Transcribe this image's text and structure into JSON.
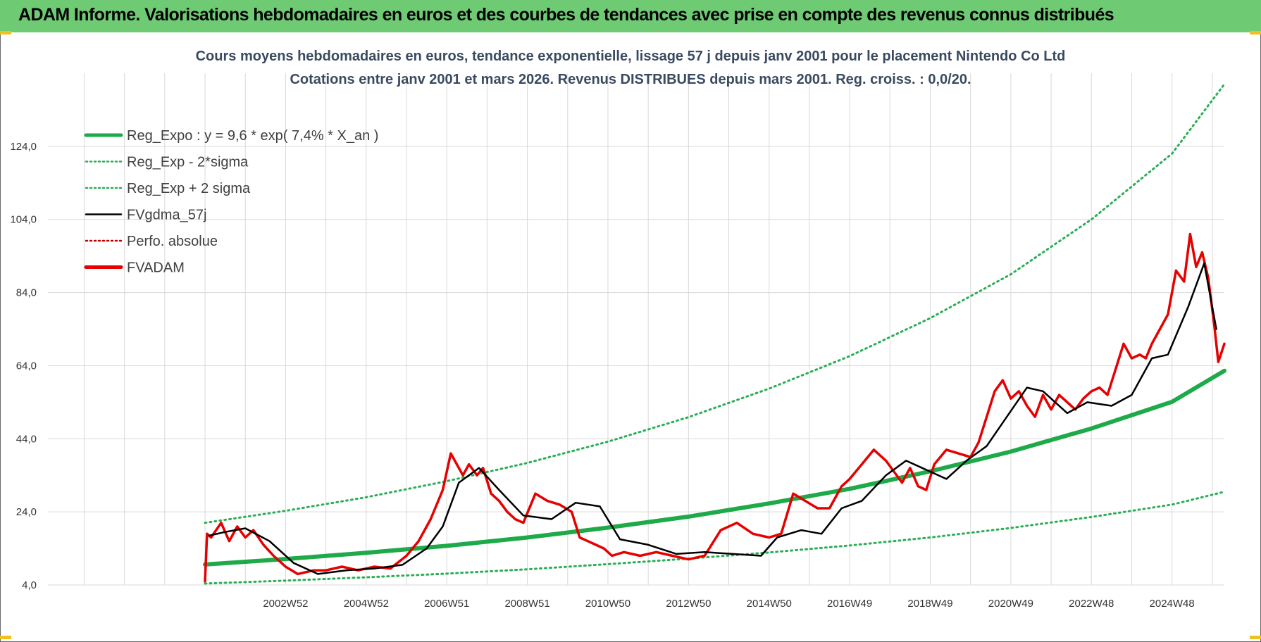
{
  "header": {
    "title": "ADAM Informe. Valorisations hebdomadaires en euros et des courbes de tendances avec prise en compte des revenus connus distribués"
  },
  "colors": {
    "header_bg": "#6ecb73",
    "reg_expo": "#1faa4a",
    "bands": "#2aae55",
    "smooth": "#000000",
    "price": "#e60000",
    "grid": "#d9d9d9",
    "title_text": "#3a4a60"
  },
  "chart_data": {
    "type": "line",
    "title": "Cours moyens hebdomadaires en euros, tendance exponentielle, lissage 57 j depuis janv 2001 pour le placement Nintendo Co Ltd",
    "subtitle": "Cotations entre janv 2001 et mars 2026. Revenus DISTRIBUES depuis mars 2001. Reg. croiss. : 0,0/20.",
    "xlabel": "",
    "ylabel": "",
    "ylim": [
      4,
      144
    ],
    "xlim": [
      1997.1,
      2026.3
    ],
    "y_ticks": [
      "4,0",
      "24,0",
      "44,0",
      "64,0",
      "84,0",
      "104,0",
      "124,0"
    ],
    "x_ticks": [
      "2002W52",
      "2004W52",
      "2006W51",
      "2008W51",
      "2010W50",
      "2012W50",
      "2014W50",
      "2016W49",
      "2018W49",
      "2020W49",
      "2022W48",
      "2024W48"
    ],
    "grid": true,
    "legend_position": "top-left",
    "legend": [
      {
        "label": "Reg_Expo : y = 9,6 * exp( 7,4% *  X_an )",
        "style": "solid-thick",
        "color": "#1faa4a"
      },
      {
        "label": "Reg_Exp - 2*sigma",
        "style": "dotted",
        "color": "#2aae55"
      },
      {
        "label": "Reg_Exp + 2 sigma",
        "style": "dotted",
        "color": "#2aae55"
      },
      {
        "label": "FVgdma_57j",
        "style": "solid",
        "color": "#000000"
      },
      {
        "label": "Perfo. absolue",
        "style": "dotted",
        "color": "#c00000"
      },
      {
        "label": "FVADAM",
        "style": "solid-thick",
        "color": "#e60000"
      }
    ],
    "series": [
      {
        "name": "Reg_Expo : y = 9,6 * exp( 7,4% *  X_an )",
        "x": [
          2001.0,
          2003,
          2005,
          2007,
          2009,
          2011,
          2013,
          2015,
          2017,
          2019,
          2021,
          2023,
          2025,
          2026.3
        ],
        "values": [
          9.6,
          11.1,
          12.8,
          14.7,
          17.0,
          19.7,
          22.7,
          26.3,
          30.3,
          35.1,
          40.5,
          46.8,
          54.1,
          62.6
        ]
      },
      {
        "name": "Reg_Exp - 2*sigma",
        "x": [
          2001.0,
          2003,
          2005,
          2007,
          2009,
          2011,
          2013,
          2015,
          2017,
          2019,
          2021,
          2023,
          2025,
          2026.3
        ],
        "values": [
          4.4,
          5.2,
          6.1,
          7.1,
          8.3,
          9.7,
          11.2,
          12.9,
          14.8,
          17.0,
          19.6,
          22.6,
          26.0,
          29.5
        ]
      },
      {
        "name": "Reg_Exp + 2 sigma",
        "x": [
          2001.0,
          2003,
          2005,
          2007,
          2009,
          2011,
          2013,
          2015,
          2017,
          2019,
          2021,
          2023,
          2025,
          2026.3
        ],
        "values": [
          21.0,
          24.3,
          28.0,
          32.4,
          37.4,
          43.2,
          49.9,
          57.7,
          66.6,
          77.0,
          89.0,
          104.0,
          122.0,
          141.0
        ]
      },
      {
        "name": "FVgdma_57j",
        "x": [
          2001.1,
          2001.5,
          2002.0,
          2002.6,
          2003.2,
          2003.8,
          2004.5,
          2005.2,
          2005.9,
          2006.5,
          2006.9,
          2007.3,
          2007.8,
          2008.3,
          2008.9,
          2009.6,
          2010.2,
          2010.8,
          2011.3,
          2012.0,
          2012.7,
          2013.4,
          2014.1,
          2014.8,
          2015.2,
          2015.8,
          2016.3,
          2016.8,
          2017.3,
          2017.9,
          2018.4,
          2018.8,
          2019.4,
          2019.9,
          2020.4,
          2020.9,
          2021.4,
          2021.8,
          2022.4,
          2022.9,
          2023.5,
          2024.0,
          2024.5,
          2024.9,
          2025.4,
          2025.8,
          2026.1
        ],
        "values": [
          17.5,
          18.5,
          19.5,
          16.0,
          10.0,
          7.0,
          8.0,
          8.5,
          9.5,
          14.0,
          20.0,
          32.0,
          36.0,
          30.0,
          23.0,
          22.0,
          26.5,
          25.5,
          16.5,
          15.0,
          12.5,
          13.0,
          12.5,
          12.0,
          17.0,
          19.0,
          18.0,
          25.0,
          27.0,
          34.0,
          38.0,
          36.0,
          33.0,
          38.0,
          42.0,
          50.0,
          58.0,
          57.0,
          51.0,
          54.0,
          53.0,
          56.0,
          66.0,
          67.0,
          80.0,
          92.0,
          74.0
        ]
      },
      {
        "name": "FVADAM",
        "x": [
          2001.0,
          2001.05,
          2001.15,
          2001.4,
          2001.6,
          2001.8,
          2002.0,
          2002.2,
          2002.45,
          2002.7,
          2003.0,
          2003.3,
          2003.7,
          2004.0,
          2004.4,
          2004.8,
          2005.2,
          2005.6,
          2006.0,
          2006.3,
          2006.6,
          2006.9,
          2007.1,
          2007.4,
          2007.55,
          2007.75,
          2007.9,
          2008.1,
          2008.3,
          2008.5,
          2008.7,
          2008.9,
          2009.2,
          2009.5,
          2009.8,
          2010.1,
          2010.3,
          2010.5,
          2010.7,
          2010.9,
          2011.1,
          2011.4,
          2011.8,
          2012.2,
          2012.6,
          2013.0,
          2013.4,
          2013.8,
          2014.2,
          2014.6,
          2015.0,
          2015.3,
          2015.6,
          2015.9,
          2016.2,
          2016.5,
          2016.65,
          2016.8,
          2017.0,
          2017.3,
          2017.6,
          2017.9,
          2018.1,
          2018.3,
          2018.5,
          2018.7,
          2018.9,
          2019.1,
          2019.4,
          2019.7,
          2020.0,
          2020.2,
          2020.4,
          2020.6,
          2020.8,
          2021.0,
          2021.2,
          2021.4,
          2021.6,
          2021.8,
          2022.0,
          2022.2,
          2022.4,
          2022.6,
          2022.8,
          2023.0,
          2023.2,
          2023.4,
          2023.6,
          2023.8,
          2024.0,
          2024.2,
          2024.35,
          2024.5,
          2024.7,
          2024.9,
          2025.1,
          2025.3,
          2025.45,
          2025.6,
          2025.75,
          2025.9,
          2026.05,
          2026.15,
          2026.3
        ],
        "values": [
          5.0,
          18.0,
          17.0,
          21.0,
          16.0,
          20.0,
          17.0,
          19.0,
          15.0,
          12.0,
          9.0,
          7.0,
          8.0,
          8.0,
          9.0,
          8.0,
          9.0,
          8.5,
          12.0,
          16.0,
          22.0,
          30.0,
          40.0,
          34.0,
          37.0,
          34.0,
          36.0,
          29.0,
          27.0,
          24.0,
          22.0,
          21.0,
          29.0,
          27.0,
          26.0,
          24.0,
          17.0,
          16.0,
          15.0,
          14.0,
          12.0,
          13.0,
          12.0,
          13.0,
          12.0,
          11.0,
          12.0,
          19.0,
          21.0,
          18.0,
          17.0,
          18.0,
          29.0,
          27.0,
          25.0,
          25.0,
          28.0,
          31.0,
          33.0,
          37.0,
          41.0,
          38.0,
          35.0,
          32.0,
          36.0,
          31.0,
          30.0,
          37.0,
          41.0,
          40.0,
          39.0,
          43.0,
          50.0,
          57.0,
          60.0,
          55.0,
          57.0,
          53.0,
          50.0,
          56.0,
          52.0,
          56.0,
          54.0,
          52.0,
          55.0,
          57.0,
          58.0,
          56.0,
          63.0,
          70.0,
          66.0,
          67.0,
          66.0,
          70.0,
          74.0,
          78.0,
          90.0,
          87.0,
          100.0,
          91.0,
          95.0,
          88.0,
          75.0,
          65.0,
          70.0
        ]
      }
    ]
  }
}
